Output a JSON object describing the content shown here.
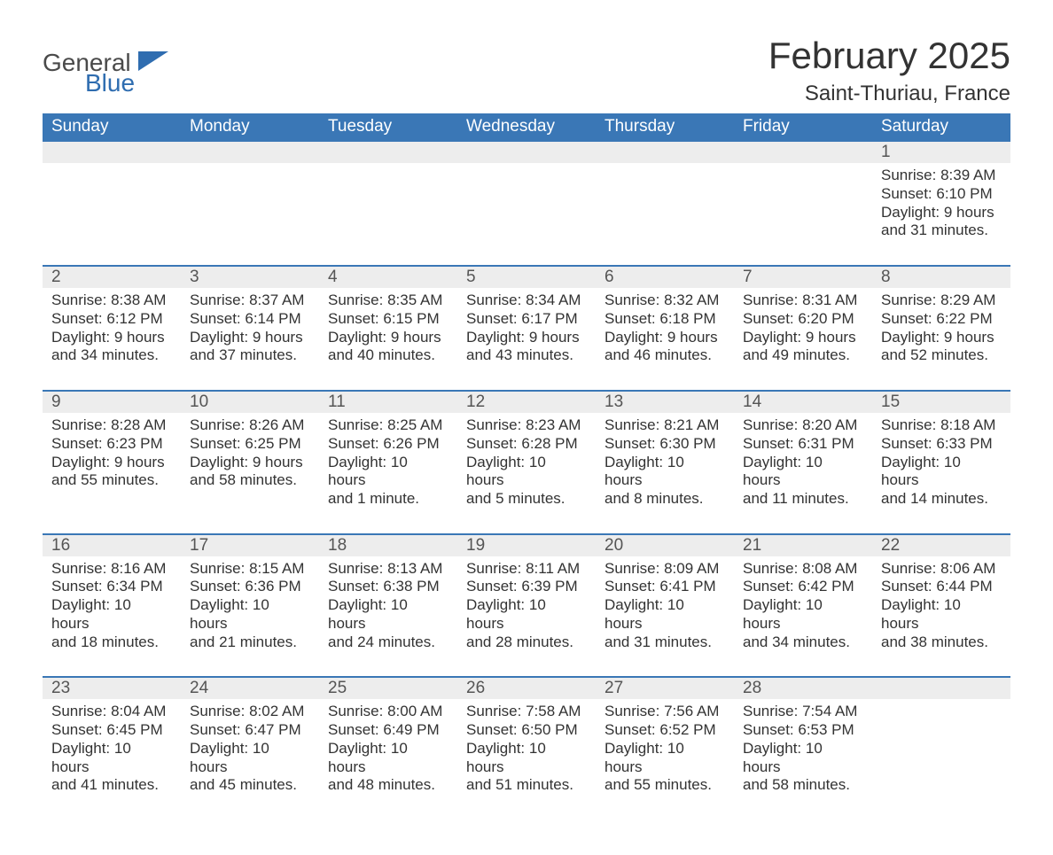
{
  "brand": {
    "general": "General",
    "blue": "Blue",
    "triangle_color": "#2f6db0",
    "text_gray": "#4a4a4a"
  },
  "title": {
    "month": "February 2025",
    "location": "Saint-Thuriau, France"
  },
  "styles": {
    "header_bg": "#3a77b6",
    "header_text": "#ffffff",
    "daynum_bg": "#ededed",
    "daynum_text": "#555555",
    "body_text": "#333333",
    "week_sep_color": "#3a77b6",
    "page_bg": "#ffffff",
    "title_fontsize": 42,
    "location_fontsize": 24,
    "dayhead_fontsize": 19,
    "daynum_fontsize": 19,
    "detail_fontsize": 17
  },
  "day_headers": [
    "Sunday",
    "Monday",
    "Tuesday",
    "Wednesday",
    "Thursday",
    "Friday",
    "Saturday"
  ],
  "weeks": [
    [
      null,
      null,
      null,
      null,
      null,
      null,
      {
        "n": "1",
        "sunrise": "Sunrise: 8:39 AM",
        "sunset": "Sunset: 6:10 PM",
        "day1": "Daylight: 9 hours",
        "day2": "and 31 minutes."
      }
    ],
    [
      {
        "n": "2",
        "sunrise": "Sunrise: 8:38 AM",
        "sunset": "Sunset: 6:12 PM",
        "day1": "Daylight: 9 hours",
        "day2": "and 34 minutes."
      },
      {
        "n": "3",
        "sunrise": "Sunrise: 8:37 AM",
        "sunset": "Sunset: 6:14 PM",
        "day1": "Daylight: 9 hours",
        "day2": "and 37 minutes."
      },
      {
        "n": "4",
        "sunrise": "Sunrise: 8:35 AM",
        "sunset": "Sunset: 6:15 PM",
        "day1": "Daylight: 9 hours",
        "day2": "and 40 minutes."
      },
      {
        "n": "5",
        "sunrise": "Sunrise: 8:34 AM",
        "sunset": "Sunset: 6:17 PM",
        "day1": "Daylight: 9 hours",
        "day2": "and 43 minutes."
      },
      {
        "n": "6",
        "sunrise": "Sunrise: 8:32 AM",
        "sunset": "Sunset: 6:18 PM",
        "day1": "Daylight: 9 hours",
        "day2": "and 46 minutes."
      },
      {
        "n": "7",
        "sunrise": "Sunrise: 8:31 AM",
        "sunset": "Sunset: 6:20 PM",
        "day1": "Daylight: 9 hours",
        "day2": "and 49 minutes."
      },
      {
        "n": "8",
        "sunrise": "Sunrise: 8:29 AM",
        "sunset": "Sunset: 6:22 PM",
        "day1": "Daylight: 9 hours",
        "day2": "and 52 minutes."
      }
    ],
    [
      {
        "n": "9",
        "sunrise": "Sunrise: 8:28 AM",
        "sunset": "Sunset: 6:23 PM",
        "day1": "Daylight: 9 hours",
        "day2": "and 55 minutes."
      },
      {
        "n": "10",
        "sunrise": "Sunrise: 8:26 AM",
        "sunset": "Sunset: 6:25 PM",
        "day1": "Daylight: 9 hours",
        "day2": "and 58 minutes."
      },
      {
        "n": "11",
        "sunrise": "Sunrise: 8:25 AM",
        "sunset": "Sunset: 6:26 PM",
        "day1": "Daylight: 10 hours",
        "day2": "and 1 minute."
      },
      {
        "n": "12",
        "sunrise": "Sunrise: 8:23 AM",
        "sunset": "Sunset: 6:28 PM",
        "day1": "Daylight: 10 hours",
        "day2": "and 5 minutes."
      },
      {
        "n": "13",
        "sunrise": "Sunrise: 8:21 AM",
        "sunset": "Sunset: 6:30 PM",
        "day1": "Daylight: 10 hours",
        "day2": "and 8 minutes."
      },
      {
        "n": "14",
        "sunrise": "Sunrise: 8:20 AM",
        "sunset": "Sunset: 6:31 PM",
        "day1": "Daylight: 10 hours",
        "day2": "and 11 minutes."
      },
      {
        "n": "15",
        "sunrise": "Sunrise: 8:18 AM",
        "sunset": "Sunset: 6:33 PM",
        "day1": "Daylight: 10 hours",
        "day2": "and 14 minutes."
      }
    ],
    [
      {
        "n": "16",
        "sunrise": "Sunrise: 8:16 AM",
        "sunset": "Sunset: 6:34 PM",
        "day1": "Daylight: 10 hours",
        "day2": "and 18 minutes."
      },
      {
        "n": "17",
        "sunrise": "Sunrise: 8:15 AM",
        "sunset": "Sunset: 6:36 PM",
        "day1": "Daylight: 10 hours",
        "day2": "and 21 minutes."
      },
      {
        "n": "18",
        "sunrise": "Sunrise: 8:13 AM",
        "sunset": "Sunset: 6:38 PM",
        "day1": "Daylight: 10 hours",
        "day2": "and 24 minutes."
      },
      {
        "n": "19",
        "sunrise": "Sunrise: 8:11 AM",
        "sunset": "Sunset: 6:39 PM",
        "day1": "Daylight: 10 hours",
        "day2": "and 28 minutes."
      },
      {
        "n": "20",
        "sunrise": "Sunrise: 8:09 AM",
        "sunset": "Sunset: 6:41 PM",
        "day1": "Daylight: 10 hours",
        "day2": "and 31 minutes."
      },
      {
        "n": "21",
        "sunrise": "Sunrise: 8:08 AM",
        "sunset": "Sunset: 6:42 PM",
        "day1": "Daylight: 10 hours",
        "day2": "and 34 minutes."
      },
      {
        "n": "22",
        "sunrise": "Sunrise: 8:06 AM",
        "sunset": "Sunset: 6:44 PM",
        "day1": "Daylight: 10 hours",
        "day2": "and 38 minutes."
      }
    ],
    [
      {
        "n": "23",
        "sunrise": "Sunrise: 8:04 AM",
        "sunset": "Sunset: 6:45 PM",
        "day1": "Daylight: 10 hours",
        "day2": "and 41 minutes."
      },
      {
        "n": "24",
        "sunrise": "Sunrise: 8:02 AM",
        "sunset": "Sunset: 6:47 PM",
        "day1": "Daylight: 10 hours",
        "day2": "and 45 minutes."
      },
      {
        "n": "25",
        "sunrise": "Sunrise: 8:00 AM",
        "sunset": "Sunset: 6:49 PM",
        "day1": "Daylight: 10 hours",
        "day2": "and 48 minutes."
      },
      {
        "n": "26",
        "sunrise": "Sunrise: 7:58 AM",
        "sunset": "Sunset: 6:50 PM",
        "day1": "Daylight: 10 hours",
        "day2": "and 51 minutes."
      },
      {
        "n": "27",
        "sunrise": "Sunrise: 7:56 AM",
        "sunset": "Sunset: 6:52 PM",
        "day1": "Daylight: 10 hours",
        "day2": "and 55 minutes."
      },
      {
        "n": "28",
        "sunrise": "Sunrise: 7:54 AM",
        "sunset": "Sunset: 6:53 PM",
        "day1": "Daylight: 10 hours",
        "day2": "and 58 minutes."
      },
      null
    ]
  ]
}
